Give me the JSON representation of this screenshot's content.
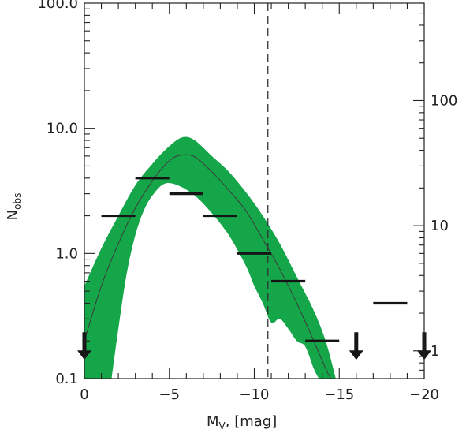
{
  "chart_data": {
    "type": "line",
    "xlabel": "M",
    "xlabel_sub": "V",
    "xlabel_rest": ", [mag]",
    "ylabel": "N",
    "ylabel_sub": "obs",
    "x_range": [
      0,
      -20
    ],
    "y_range": [
      0.1,
      100
    ],
    "y_scale": "log",
    "right_axis_range": [
      0.6,
      600
    ],
    "right_axis_scale": "log",
    "x_ticks": [
      {
        "value": 0,
        "label": "0"
      },
      {
        "value": -5,
        "label": "−5"
      },
      {
        "value": -10,
        "label": "−10"
      },
      {
        "value": -15,
        "label": "−15"
      },
      {
        "value": -20,
        "label": "−20"
      }
    ],
    "y_ticks": [
      {
        "value": 0.1,
        "label": "0.1"
      },
      {
        "value": 1,
        "label": "1.0"
      },
      {
        "value": 10,
        "label": "10.0"
      },
      {
        "value": 100,
        "label": "100.0"
      }
    ],
    "right_ticks": [
      {
        "value": 1,
        "label": "1"
      },
      {
        "value": 10,
        "label": "10"
      },
      {
        "value": 100,
        "label": "100"
      }
    ],
    "band_color": "#16a64a",
    "band_upper": [
      [
        0,
        0.55
      ],
      [
        -1,
        1.1
      ],
      [
        -2,
        2.0
      ],
      [
        -3,
        3.5
      ],
      [
        -4,
        5.2
      ],
      [
        -5,
        7.2
      ],
      [
        -5.8,
        8.5
      ],
      [
        -6.5,
        8.0
      ],
      [
        -7.5,
        6.0
      ],
      [
        -8.5,
        4.5
      ],
      [
        -9.5,
        3.1
      ],
      [
        -10.5,
        2.0
      ],
      [
        -11.5,
        1.2
      ],
      [
        -12.5,
        0.65
      ],
      [
        -13.5,
        0.35
      ],
      [
        -14.2,
        0.2
      ],
      [
        -14.8,
        0.1
      ]
    ],
    "band_lower": [
      [
        -1.6,
        0.1
      ],
      [
        -2,
        0.25
      ],
      [
        -2.5,
        0.7
      ],
      [
        -3,
        1.4
      ],
      [
        -3.5,
        2.2
      ],
      [
        -4,
        2.9
      ],
      [
        -4.7,
        3.6
      ],
      [
        -5.5,
        3.5
      ],
      [
        -6.5,
        2.9
      ],
      [
        -7.5,
        2.1
      ],
      [
        -8.5,
        1.4
      ],
      [
        -9.5,
        0.8
      ],
      [
        -10,
        0.55
      ],
      [
        -10.5,
        0.4
      ],
      [
        -11,
        0.28
      ],
      [
        -11.5,
        0.3
      ],
      [
        -12,
        0.25
      ],
      [
        -12.5,
        0.2
      ],
      [
        -13,
        0.18
      ],
      [
        -13.5,
        0.12
      ],
      [
        -13.8,
        0.1
      ]
    ],
    "model_line": [
      [
        0,
        0.2
      ],
      [
        -1,
        0.55
      ],
      [
        -2,
        1.2
      ],
      [
        -3,
        2.3
      ],
      [
        -4,
        3.8
      ],
      [
        -5,
        5.5
      ],
      [
        -5.7,
        6.1
      ],
      [
        -6.5,
        5.9
      ],
      [
        -7.5,
        4.5
      ],
      [
        -8.5,
        3.2
      ],
      [
        -9.5,
        2.2
      ],
      [
        -10.5,
        1.3
      ],
      [
        -11.5,
        0.75
      ],
      [
        -12.5,
        0.4
      ],
      [
        -13.5,
        0.2
      ],
      [
        -14.2,
        0.12
      ],
      [
        -14.5,
        0.1
      ]
    ],
    "observed_bins": [
      {
        "x0": -1,
        "x1": -3,
        "y": 2.0
      },
      {
        "x0": -3,
        "x1": -5,
        "y": 4.0
      },
      {
        "x0": -5,
        "x1": -7,
        "y": 3.0
      },
      {
        "x0": -7,
        "x1": -9,
        "y": 2.0
      },
      {
        "x0": -9,
        "x1": -11,
        "y": 1.0
      },
      {
        "x0": -11,
        "x1": -13,
        "y": 0.6
      },
      {
        "x0": -13,
        "x1": -15,
        "y": 0.2
      },
      {
        "x0": -17,
        "x1": -19,
        "y": 0.4
      }
    ],
    "upper_limits": [
      {
        "x": 0,
        "y": 0.2
      },
      {
        "x": -16,
        "y": 0.2
      },
      {
        "x": -20,
        "y": 0.2
      }
    ],
    "reference_line_x": -10.8,
    "grid": false
  }
}
